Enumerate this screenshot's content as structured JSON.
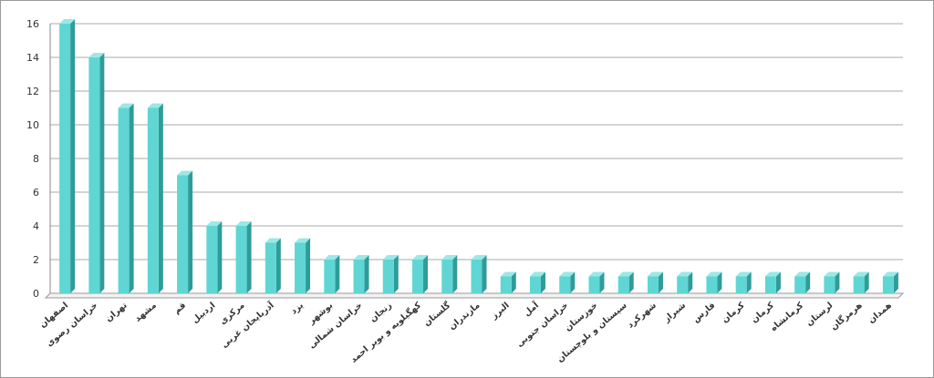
{
  "chart_data": {
    "type": "bar",
    "categories": [
      "اصفهان",
      "خراسان رضوی",
      "تهران",
      "مشهد",
      "قم",
      "اردبیل",
      "مرکزی",
      "آذربایجان غربی",
      "یزد",
      "بوشهر",
      "خراسان شمالی",
      "زنجان",
      "کهگیلویه و بویر احمد",
      "گلستان",
      "مازندران",
      "البرز",
      "آمل",
      "خراسان جنوبی",
      "خوزستان",
      "سیستان و بلوچستان",
      "شهرکرد",
      "شیراز",
      "فارس",
      "کرمان",
      "کرمان",
      "کرمانشاه",
      "لرستان",
      "هرمزگان",
      "همدان"
    ],
    "values": [
      16,
      14,
      11,
      11,
      7,
      4,
      4,
      3,
      3,
      2,
      2,
      2,
      2,
      2,
      2,
      1,
      1,
      1,
      1,
      1,
      1,
      1,
      1,
      1,
      1,
      1,
      1,
      1,
      1
    ],
    "color": "#5fd6d3",
    "ylim": [
      0,
      16
    ],
    "yticks": [
      0,
      2,
      4,
      6,
      8,
      10,
      12,
      14,
      16
    ],
    "grid": true
  }
}
